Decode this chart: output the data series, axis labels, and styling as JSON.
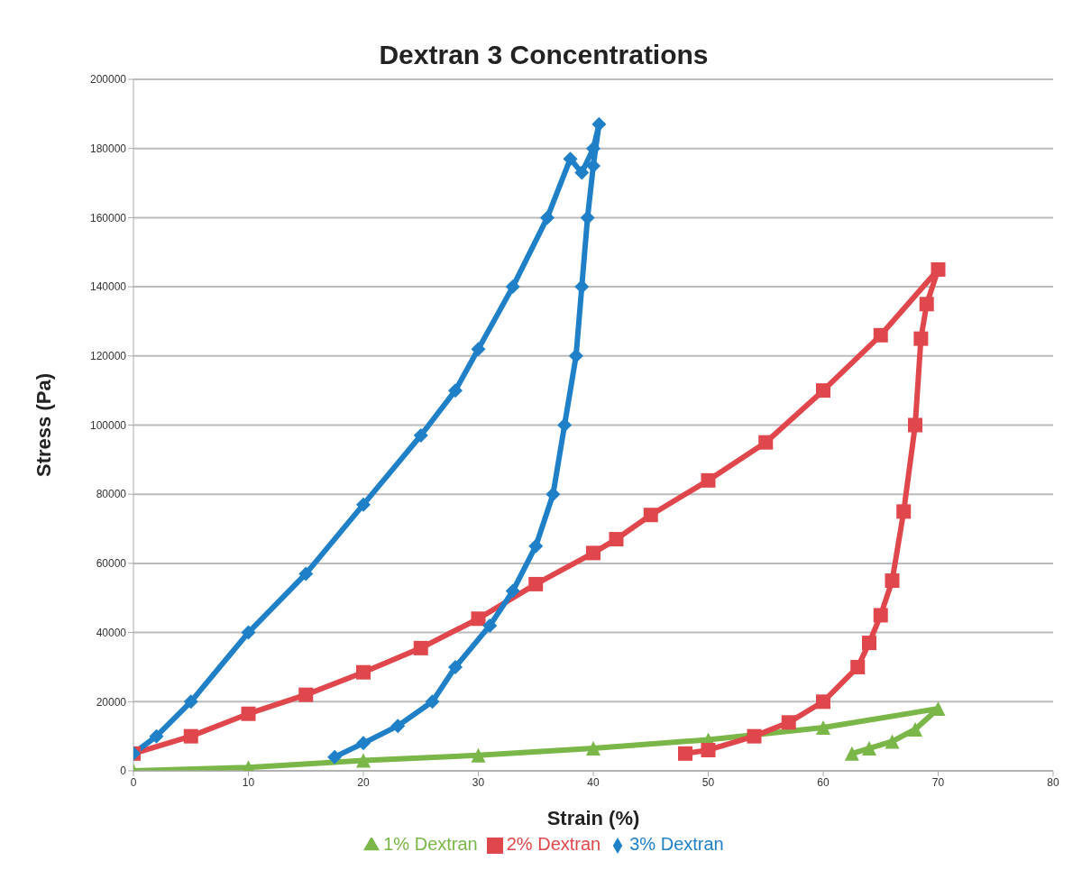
{
  "chart_data": {
    "type": "line",
    "title": "Dextran 3 Concentrations",
    "xlabel": "Strain (%)",
    "ylabel": "Stress (Pa)",
    "xlim": [
      0,
      80
    ],
    "xticks": [
      0,
      10,
      20,
      30,
      40,
      50,
      60,
      70,
      80
    ],
    "ylim": [
      0,
      200000
    ],
    "yticks": [
      0,
      20000,
      40000,
      60000,
      80000,
      100000,
      120000,
      140000,
      160000,
      180000,
      200000
    ],
    "grid": "y",
    "legend": "bottom",
    "line_style": "solid",
    "series": [
      {
        "name": "1% Dextran",
        "color": "#7ab648",
        "marker": "triangle",
        "x": [
          0,
          10,
          20,
          30,
          40,
          50,
          60,
          70,
          68,
          66,
          64,
          62.5
        ],
        "values": [
          0,
          1000,
          3000,
          4500,
          6500,
          9000,
          12500,
          18000,
          12000,
          8500,
          6500,
          5000
        ]
      },
      {
        "name": "2% Dextran",
        "color": "#e0474c",
        "marker": "square",
        "x": [
          0,
          5,
          10,
          15,
          20,
          25,
          30,
          35,
          40,
          42,
          45,
          50,
          55,
          60,
          65,
          70,
          69,
          68.5,
          68,
          67,
          66,
          65,
          64,
          63,
          60,
          57,
          54,
          50,
          48
        ],
        "values": [
          5000,
          10000,
          16500,
          22000,
          28500,
          35500,
          44000,
          54000,
          63000,
          67000,
          74000,
          84000,
          95000,
          110000,
          126000,
          145000,
          135000,
          125000,
          100000,
          75000,
          55000,
          45000,
          37000,
          30000,
          20000,
          14000,
          10000,
          6000,
          5000
        ]
      },
      {
        "name": "3% Dextran",
        "color": "#1f80c8",
        "marker": "diamond",
        "x": [
          0,
          2,
          5,
          10,
          15,
          20,
          25,
          28,
          30,
          33,
          36,
          38,
          39,
          40,
          40.5,
          40,
          39.5,
          39,
          38.5,
          37.5,
          36.5,
          35,
          33,
          31,
          28,
          26,
          23,
          20,
          17.5
        ],
        "values": [
          5000,
          10000,
          20000,
          40000,
          57000,
          77000,
          97000,
          110000,
          122000,
          140000,
          160000,
          177000,
          173000,
          180000,
          187000,
          175000,
          160000,
          140000,
          120000,
          100000,
          80000,
          65000,
          52000,
          42000,
          30000,
          20000,
          13000,
          8000,
          4000
        ]
      }
    ]
  }
}
